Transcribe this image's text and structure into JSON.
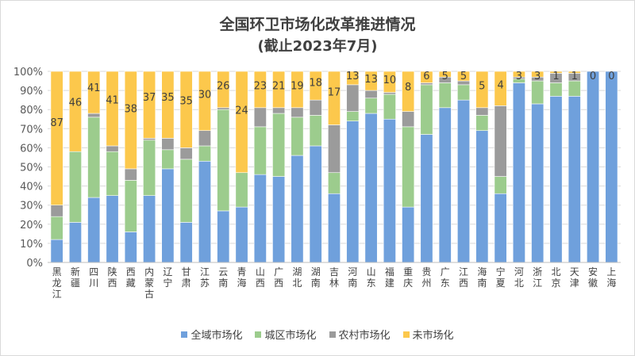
{
  "chart_data": {
    "type": "bar",
    "stacked": true,
    "title": "全国环卫市场化改革推进情况",
    "subtitle": "(截止2023年7月)",
    "ylim": [
      0,
      100
    ],
    "y_ticks": [
      "0%",
      "10%",
      "20%",
      "30%",
      "40%",
      "50%",
      "60%",
      "70%",
      "80%",
      "90%",
      "100%"
    ],
    "grid": true,
    "legend_position": "bottom",
    "categories": [
      "黑龙江",
      "新疆",
      "四川",
      "陕西",
      "西藏",
      "内蒙古",
      "辽宁",
      "甘肃",
      "江苏",
      "云南",
      "青海",
      "山西",
      "广西",
      "湖北",
      "湖南",
      "吉林",
      "河南",
      "山东",
      "福建",
      "重庆",
      "贵州",
      "广东",
      "江西",
      "海南",
      "宁夏",
      "河北",
      "浙江",
      "北京",
      "天津",
      "安徽",
      "上海"
    ],
    "series": [
      {
        "name": "全域市场化",
        "color": "#6fa0dc",
        "values": [
          12,
          21,
          34,
          35,
          16,
          35,
          49,
          21,
          53,
          27,
          29,
          46,
          45,
          56,
          61,
          36,
          74,
          78,
          75,
          29,
          67,
          81,
          85,
          69,
          36,
          94,
          83,
          87,
          87,
          100,
          100
        ]
      },
      {
        "name": "城区市场化",
        "color": "#9ccc8d",
        "values": [
          12,
          37,
          42,
          23,
          27,
          29,
          10,
          33,
          8,
          53,
          18,
          25,
          33,
          20,
          16,
          11,
          5,
          8,
          13,
          42,
          26,
          13,
          8,
          8,
          9,
          2,
          12,
          7,
          8,
          0,
          0
        ]
      },
      {
        "name": "农村市场化",
        "color": "#9b9b9b",
        "values": [
          6,
          0,
          2,
          3,
          6,
          1,
          6,
          6,
          8,
          1,
          0,
          10,
          3,
          5,
          8,
          25,
          14,
          4,
          1,
          8,
          1,
          3,
          2,
          4,
          37,
          1,
          2,
          5,
          4,
          0,
          0
        ]
      },
      {
        "name": "未市场化",
        "color": "#fcc84c",
        "values": [
          70,
          42,
          22,
          39,
          51,
          35,
          35,
          40,
          31,
          19,
          53,
          19,
          19,
          19,
          15,
          28,
          7,
          10,
          11,
          21,
          6,
          3,
          5,
          19,
          18,
          3,
          3,
          1,
          1,
          0,
          0
        ]
      }
    ],
    "data_labels": [
      "87",
      "46",
      "41",
      "41",
      "38",
      "37",
      "35",
      "35",
      "30",
      "26",
      "24",
      "23",
      "21",
      "19",
      "18",
      "17",
      "13",
      "13",
      "10",
      "8",
      "6",
      "5",
      "5",
      "5",
      "4",
      "3",
      "3",
      "1",
      "1",
      "0",
      "0"
    ],
    "bar_color_hint_secondary": "#4f81bd"
  }
}
